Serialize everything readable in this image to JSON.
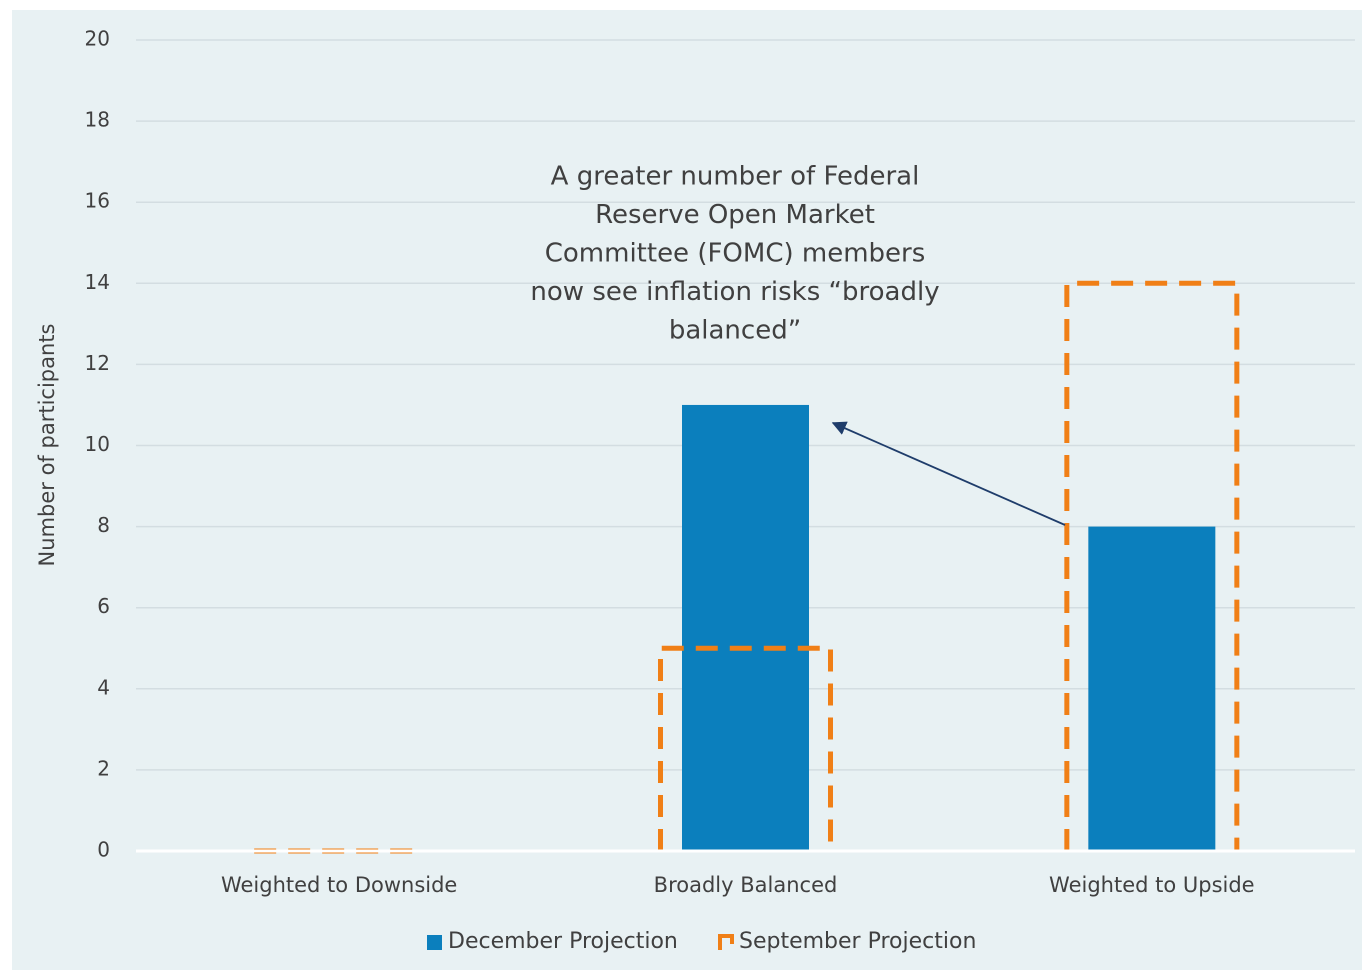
{
  "chart_data": {
    "type": "bar",
    "y_label": "Number of participants",
    "categories": [
      "Weighted to Downside",
      "Broadly Balanced",
      "Weighted to Upside"
    ],
    "series": [
      {
        "name": "December Projection",
        "color": "#0b7fbd",
        "style": "solid",
        "values": [
          0,
          11,
          8
        ]
      },
      {
        "name": "September Projection",
        "color": "#f07f16",
        "style": "dashed",
        "values": [
          0,
          5,
          14
        ]
      }
    ],
    "annotation": [
      "A greater number of Federal",
      "Reserve Open Market",
      "Committee (FOMC) members",
      "now see inflation risks “broadly",
      "balanced”"
    ],
    "ylim": [
      0,
      20
    ],
    "yticks": [
      0,
      2,
      4,
      6,
      8,
      10,
      12,
      14,
      16,
      18,
      20
    ],
    "grid": true,
    "legend": "bottom"
  }
}
